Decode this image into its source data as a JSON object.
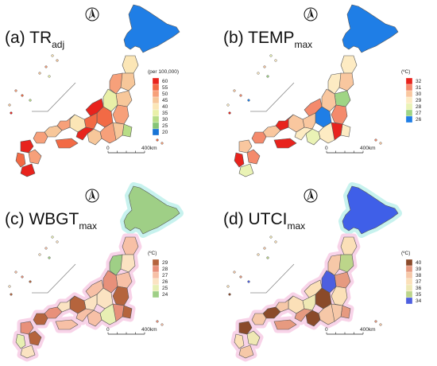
{
  "panels": [
    {
      "id": "a",
      "label_main": "(a)  TR",
      "label_sub": "adj",
      "legend_unit": "(per 100,000)",
      "legend_values": [
        "60",
        "55",
        "50",
        "45",
        "40",
        "35",
        "30",
        "25",
        "20"
      ],
      "legend_colors": [
        "#e8231d",
        "#f26a45",
        "#f7a07a",
        "#f7c79a",
        "#fbe6b6",
        "#e9f0a8",
        "#b8dd86",
        "#86c576",
        "#1874d6"
      ],
      "scale_labels": [
        "0",
        "400km"
      ],
      "hokkaido_color": "#1f7ee6",
      "halo": false
    },
    {
      "id": "b",
      "label_main": "(b)  TEMP",
      "label_sub": "max",
      "legend_unit": "(ºC)",
      "legend_values": [
        "32",
        "31",
        "30",
        "29",
        "28",
        "27",
        "26"
      ],
      "legend_colors": [
        "#e8231d",
        "#f48a6c",
        "#f9c79f",
        "#fdebc3",
        "#eaf3b5",
        "#9fd585",
        "#1f7ee6"
      ],
      "scale_labels": [
        "0",
        "400km"
      ],
      "hokkaido_color": "#1f7ee6",
      "halo": false
    },
    {
      "id": "c",
      "label_main": "(c)  WBGT",
      "label_sub": "max",
      "legend_unit": "(ºC)",
      "legend_values": [
        "29",
        "28",
        "27",
        "26",
        "25",
        "24"
      ],
      "legend_colors": [
        "#b5643d",
        "#e8907a",
        "#f7c0a6",
        "#fbe3c2",
        "#e8efb3",
        "#9fcf86"
      ],
      "scale_labels": [
        "0",
        "400km"
      ],
      "hokkaido_color": "#9fcf86",
      "halo": true
    },
    {
      "id": "d",
      "label_main": "(d)  UTCI",
      "label_sub": "max",
      "legend_unit": "(ºC)",
      "legend_values": [
        "40",
        "39",
        "38",
        "37",
        "36",
        "35",
        "34"
      ],
      "legend_colors": [
        "#8a4a2a",
        "#e69a80",
        "#f6c8a8",
        "#fbe0b8",
        "#efe8b4",
        "#bcd58a",
        "#4d5fe0"
      ],
      "scale_labels": [
        "0",
        "400km"
      ],
      "hokkaido_color": "#3f5fe8",
      "halo": true
    }
  ]
}
